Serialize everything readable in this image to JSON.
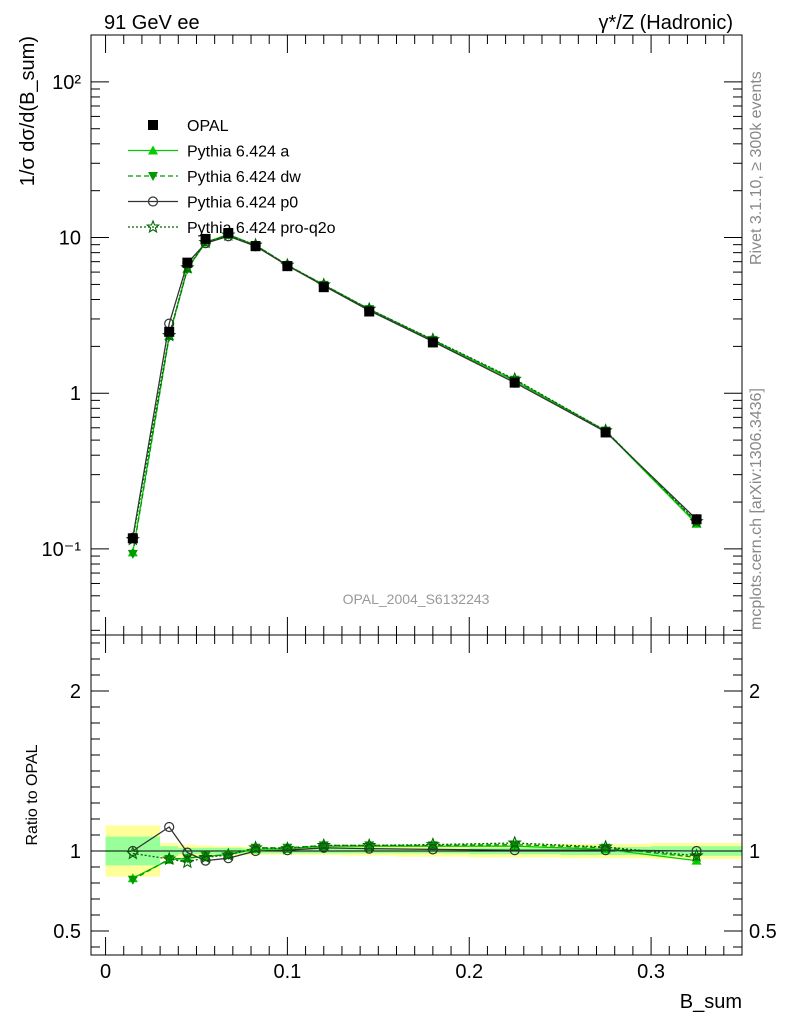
{
  "header": {
    "left": "91 GeV ee",
    "right": "γ*/Z (Hadronic)"
  },
  "side": {
    "rivet": "Rivet 3.1.10, ≥ 300k events",
    "mcplots": "mcplots.cern.ch [arXiv:1306.3436]"
  },
  "analysis_id": "OPAL_2004_S6132243",
  "colors": {
    "data": "#000000",
    "mc_a": "#00cc00",
    "mc_dw": "#009900",
    "mc_p0": "#333333",
    "mc_pro": "#006600",
    "band_inner": "#99ff99",
    "band_outer": "#ffff99"
  },
  "chart_data": [
    {
      "type": "line",
      "panel": "main",
      "ylabel": "1/σ dσ/d(B_sum)",
      "yscale": "log",
      "ylim": [
        0.028,
        200
      ],
      "xlim": [
        -0.008,
        0.35
      ],
      "y_tick_labels": [
        "10⁻¹",
        "1",
        "10",
        "10²"
      ],
      "legend_position": "top-left",
      "x": [
        0.015,
        0.035,
        0.045,
        0.055,
        0.0675,
        0.0825,
        0.1,
        0.12,
        0.145,
        0.18,
        0.225,
        0.275,
        0.325
      ],
      "series": [
        {
          "name": "OPAL",
          "marker": "square",
          "values": [
            0.117,
            2.48,
            6.9,
            9.8,
            10.7,
            8.8,
            6.55,
            4.8,
            3.35,
            2.12,
            1.17,
            0.56,
            0.155
          ]
        },
        {
          "name": "Pythia 6.424 a",
          "marker": "triangle-up",
          "values": [
            0.095,
            2.33,
            6.3,
            9.3,
            10.5,
            8.9,
            6.6,
            4.95,
            3.45,
            2.18,
            1.2,
            0.57,
            0.145
          ]
        },
        {
          "name": "Pythia 6.424 dw",
          "marker": "triangle-down",
          "values": [
            0.093,
            2.3,
            6.25,
            9.35,
            10.4,
            8.95,
            6.65,
            4.97,
            3.47,
            2.2,
            1.22,
            0.575,
            0.148
          ]
        },
        {
          "name": "Pythia 6.424 p0",
          "marker": "circle",
          "values": [
            0.118,
            2.8,
            6.85,
            9.2,
            10.2,
            8.8,
            6.6,
            4.9,
            3.4,
            2.15,
            1.17,
            0.565,
            0.155
          ]
        },
        {
          "name": "Pythia 6.424 pro-q2o",
          "marker": "star",
          "values": [
            0.115,
            2.35,
            6.4,
            9.3,
            10.4,
            8.95,
            6.65,
            4.97,
            3.47,
            2.21,
            1.23,
            0.575,
            0.15
          ]
        }
      ]
    },
    {
      "type": "line",
      "panel": "ratio",
      "xlabel": "B_sum",
      "ylabel": "Ratio to OPAL",
      "ylim": [
        0.35,
        2.35
      ],
      "xlim": [
        -0.008,
        0.35
      ],
      "x_tick_labels": [
        "0",
        "0.1",
        "0.2",
        "0.3"
      ],
      "y_tick_labels": [
        "0.5",
        "1",
        "2"
      ],
      "band_x_edges": [
        0.0,
        0.03,
        0.04,
        0.05,
        0.06,
        0.075,
        0.09,
        0.11,
        0.13,
        0.16,
        0.2,
        0.25,
        0.3,
        0.35
      ],
      "band_inner_halfwidth": [
        0.09,
        0.03,
        0.02,
        0.02,
        0.02,
        0.015,
        0.015,
        0.015,
        0.015,
        0.015,
        0.02,
        0.025,
        0.03
      ],
      "band_outer_halfwidth": [
        0.16,
        0.05,
        0.04,
        0.035,
        0.03,
        0.025,
        0.025,
        0.025,
        0.03,
        0.035,
        0.04,
        0.045,
        0.05
      ],
      "x": [
        0.015,
        0.035,
        0.045,
        0.055,
        0.0675,
        0.0825,
        0.1,
        0.12,
        0.145,
        0.18,
        0.225,
        0.275,
        0.325
      ],
      "series": [
        {
          "name": "Pythia 6.424 a",
          "values": [
            0.83,
            0.945,
            0.955,
            0.965,
            0.98,
            1.01,
            1.015,
            1.03,
            1.03,
            1.03,
            1.03,
            1.01,
            0.94
          ]
        },
        {
          "name": "Pythia 6.424 dw",
          "values": [
            0.82,
            0.95,
            0.955,
            0.97,
            0.975,
            1.02,
            1.02,
            1.035,
            1.035,
            1.035,
            1.04,
            1.02,
            0.96
          ]
        },
        {
          "name": "Pythia 6.424 p0",
          "values": [
            1.0,
            1.15,
            0.99,
            0.94,
            0.955,
            1.0,
            1.005,
            1.02,
            1.015,
            1.01,
            1.005,
            1.005,
            1.0
          ]
        },
        {
          "name": "Pythia 6.424 pro-q2o",
          "values": [
            0.985,
            0.95,
            0.93,
            0.96,
            0.975,
            1.02,
            1.015,
            1.035,
            1.035,
            1.04,
            1.05,
            1.025,
            0.97
          ]
        }
      ]
    }
  ]
}
